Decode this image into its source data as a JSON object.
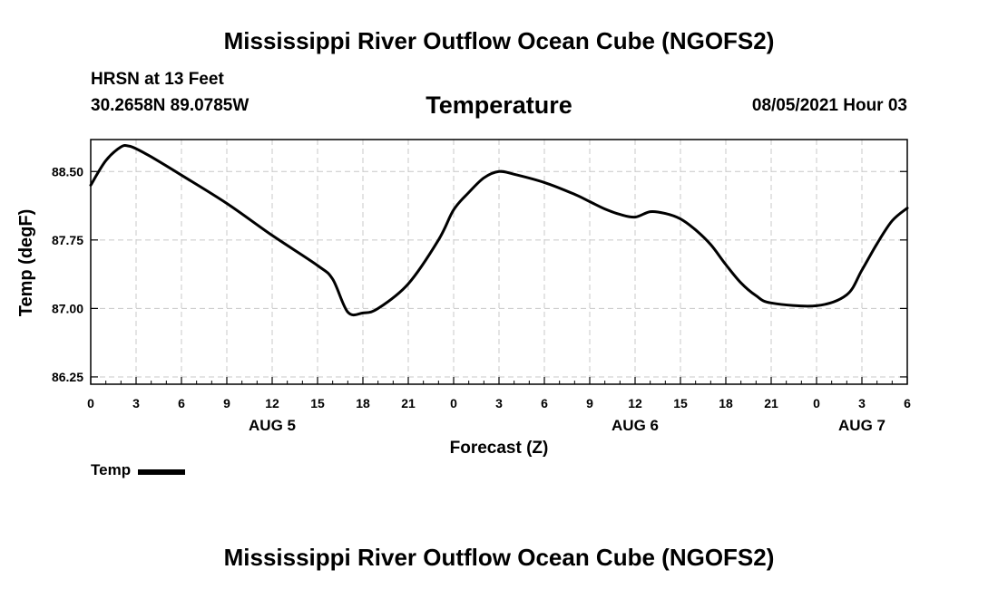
{
  "header": {
    "title": "Mississippi River Outflow Ocean Cube (NGOFS2)",
    "station": "HRSN at 13 Feet",
    "coords": "30.2658N  89.0785W",
    "variable": "Temperature",
    "datetime": "08/05/2021 Hour 03"
  },
  "footer": {
    "title": "Mississippi River Outflow Ocean Cube (NGOFS2)"
  },
  "legend": {
    "label": "Temp"
  },
  "chart_data": {
    "type": "line",
    "title": "Temperature",
    "xlabel": "Forecast (Z)",
    "ylabel": "Temp (degF)",
    "x_unit": "hours from Aug 5 00Z",
    "xlim": [
      0,
      54
    ],
    "ylim": [
      86.17,
      88.85
    ],
    "grid": true,
    "yticks": [
      86.25,
      87.0,
      87.75,
      88.5
    ],
    "ytick_labels": [
      "86.25",
      "87.00",
      "87.75",
      "88.50"
    ],
    "xticks": [
      0,
      3,
      6,
      9,
      12,
      15,
      18,
      21,
      24,
      27,
      30,
      33,
      36,
      39,
      42,
      45,
      48,
      51,
      54
    ],
    "xtick_labels": [
      "0",
      "3",
      "6",
      "9",
      "12",
      "15",
      "18",
      "21",
      "0",
      "3",
      "6",
      "9",
      "12",
      "15",
      "18",
      "21",
      "0",
      "3",
      "6"
    ],
    "date_labels": [
      {
        "x": 12,
        "label": "AUG 5"
      },
      {
        "x": 36,
        "label": "AUG 6"
      },
      {
        "x": 51,
        "label": "AUG 7"
      }
    ],
    "series": [
      {
        "name": "Temp",
        "color": "#000000",
        "x": [
          0,
          1,
          2,
          2.5,
          3,
          4,
          6,
          9,
          12,
          15,
          16,
          17,
          18,
          19,
          21,
          23,
          24,
          25,
          26,
          27,
          28,
          30,
          32,
          33,
          34,
          35,
          36,
          37,
          38,
          39,
          40,
          41,
          42,
          43,
          44,
          45,
          48,
          50,
          51,
          52,
          53,
          54
        ],
        "y": [
          88.35,
          88.62,
          88.77,
          88.78,
          88.75,
          88.66,
          88.46,
          88.15,
          87.8,
          87.47,
          87.32,
          86.96,
          86.95,
          87.0,
          87.27,
          87.75,
          88.08,
          88.27,
          88.43,
          88.5,
          88.47,
          88.38,
          88.25,
          88.17,
          88.09,
          88.03,
          88.0,
          88.06,
          88.04,
          87.98,
          87.86,
          87.7,
          87.48,
          87.28,
          87.14,
          87.06,
          87.03,
          87.15,
          87.42,
          87.71,
          87.96,
          88.1
        ]
      }
    ]
  }
}
